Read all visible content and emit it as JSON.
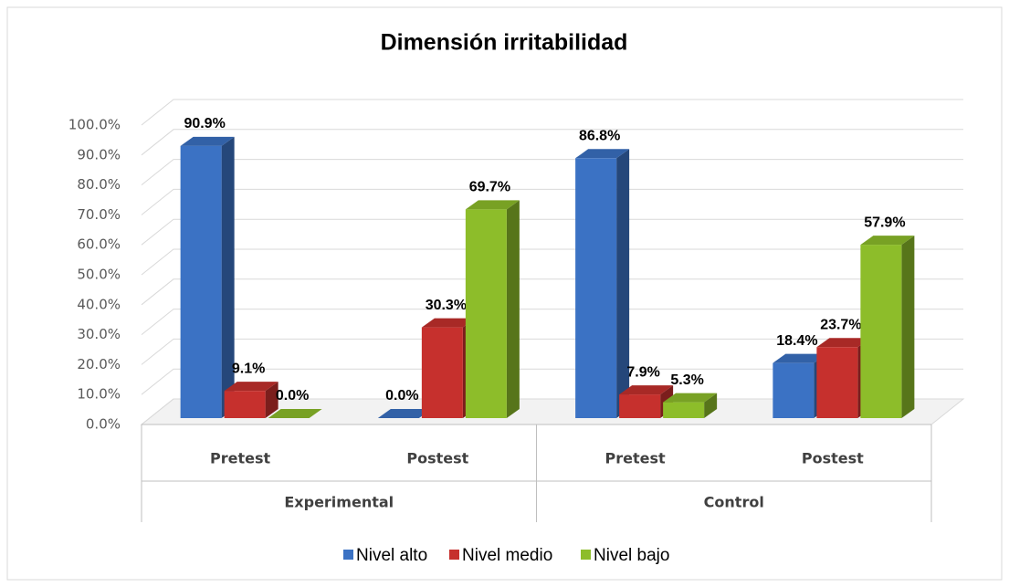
{
  "chart_data": {
    "type": "bar3d",
    "title": "Dimensión irritabilidad",
    "categories": [
      "Pretest",
      "Postest",
      "Pretest",
      "Postest"
    ],
    "groups": [
      "Experimental",
      "Control"
    ],
    "series": [
      {
        "name": "Nivel alto",
        "color": "#3b72c4",
        "values": [
          90.9,
          0,
          86.8,
          18.4
        ],
        "value_labels": [
          "90.9%",
          "0.0%",
          "86.8%",
          "18.4%"
        ]
      },
      {
        "name": "Nivel medio",
        "color": "#c6302d",
        "values": [
          9.1,
          30.3,
          7.9,
          23.7
        ],
        "value_labels": [
          "9.1%",
          "30.3%",
          "7.9%",
          "23.7%"
        ]
      },
      {
        "name": "Nivel bajo",
        "color": "#8dbd2a",
        "values": [
          0,
          69.7,
          5.3,
          57.9
        ],
        "value_labels": [
          "0.0%",
          "69.7%",
          "5.3%",
          "57.9%"
        ]
      }
    ],
    "ylim": [
      0,
      100
    ],
    "yticks": [
      {
        "value": 0,
        "label": "0.0%"
      },
      {
        "value": 10,
        "label": "10.0%"
      },
      {
        "value": 20,
        "label": "20.0%"
      },
      {
        "value": 30,
        "label": "30.0%"
      },
      {
        "value": 40,
        "label": "40.0%"
      },
      {
        "value": 50,
        "label": "50.0%"
      },
      {
        "value": 60,
        "label": "60.0%"
      },
      {
        "value": 70,
        "label": "70.0%"
      },
      {
        "value": 80,
        "label": "80.0%"
      },
      {
        "value": 90,
        "label": "90.0%"
      },
      {
        "value": 100,
        "label": "100.0%"
      }
    ],
    "grid": true
  }
}
